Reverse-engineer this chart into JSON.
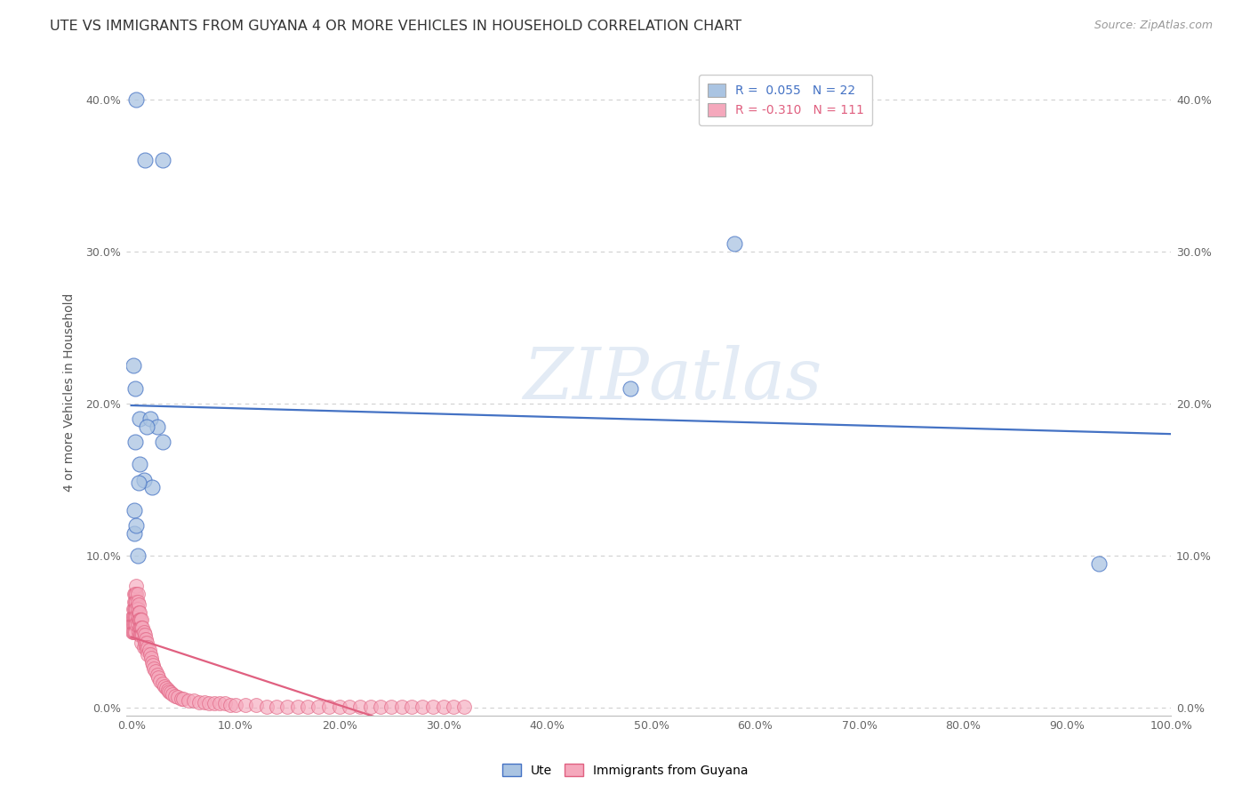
{
  "title": "UTE VS IMMIGRANTS FROM GUYANA 4 OR MORE VEHICLES IN HOUSEHOLD CORRELATION CHART",
  "source": "Source: ZipAtlas.com",
  "ylabel": "4 or more Vehicles in Household",
  "xlabel": "",
  "watermark": "ZIPatlas",
  "xlim": [
    -0.005,
    1.0
  ],
  "ylim": [
    -0.005,
    0.42
  ],
  "xticks": [
    0.0,
    0.1,
    0.2,
    0.3,
    0.4,
    0.5,
    0.6,
    0.7,
    0.8,
    0.9,
    1.0
  ],
  "yticks": [
    0.0,
    0.1,
    0.2,
    0.3,
    0.4
  ],
  "ute_R": 0.055,
  "ute_N": 22,
  "guyana_R": -0.31,
  "guyana_N": 111,
  "ute_color": "#aac4e2",
  "guyana_color": "#f5a8bc",
  "ute_line_color": "#4472c4",
  "guyana_line_color": "#e06080",
  "legend_label_ute": "Ute",
  "legend_label_guyana": "Immigrants from Guyana",
  "ute_points_x": [
    0.005,
    0.013,
    0.03,
    0.002,
    0.004,
    0.008,
    0.018,
    0.025,
    0.004,
    0.008,
    0.012,
    0.02,
    0.03,
    0.003,
    0.003,
    0.006,
    0.48,
    0.58,
    0.93,
    0.007,
    0.005,
    0.015
  ],
  "ute_points_y": [
    0.4,
    0.36,
    0.36,
    0.225,
    0.21,
    0.19,
    0.19,
    0.185,
    0.175,
    0.16,
    0.15,
    0.145,
    0.175,
    0.13,
    0.115,
    0.1,
    0.21,
    0.305,
    0.095,
    0.148,
    0.12,
    0.185
  ],
  "guyana_points_x": [
    0.001,
    0.001,
    0.001,
    0.002,
    0.002,
    0.002,
    0.002,
    0.003,
    0.003,
    0.003,
    0.003,
    0.003,
    0.003,
    0.004,
    0.004,
    0.004,
    0.004,
    0.004,
    0.004,
    0.005,
    0.005,
    0.005,
    0.005,
    0.005,
    0.005,
    0.006,
    0.006,
    0.006,
    0.006,
    0.006,
    0.007,
    0.007,
    0.007,
    0.007,
    0.008,
    0.008,
    0.008,
    0.008,
    0.009,
    0.009,
    0.009,
    0.01,
    0.01,
    0.01,
    0.01,
    0.011,
    0.011,
    0.012,
    0.012,
    0.012,
    0.013,
    0.013,
    0.014,
    0.014,
    0.015,
    0.015,
    0.016,
    0.016,
    0.017,
    0.018,
    0.019,
    0.02,
    0.021,
    0.022,
    0.023,
    0.025,
    0.026,
    0.028,
    0.03,
    0.032,
    0.034,
    0.035,
    0.036,
    0.038,
    0.04,
    0.042,
    0.045,
    0.048,
    0.05,
    0.055,
    0.06,
    0.065,
    0.07,
    0.075,
    0.08,
    0.085,
    0.09,
    0.095,
    0.1,
    0.11,
    0.12,
    0.13,
    0.14,
    0.15,
    0.16,
    0.17,
    0.18,
    0.19,
    0.2,
    0.21,
    0.22,
    0.23,
    0.24,
    0.25,
    0.26,
    0.27,
    0.28,
    0.29,
    0.3,
    0.31,
    0.32
  ],
  "guyana_points_y": [
    0.06,
    0.055,
    0.05,
    0.065,
    0.06,
    0.055,
    0.05,
    0.075,
    0.07,
    0.065,
    0.06,
    0.055,
    0.05,
    0.075,
    0.07,
    0.065,
    0.06,
    0.055,
    0.05,
    0.08,
    0.075,
    0.07,
    0.065,
    0.06,
    0.055,
    0.075,
    0.07,
    0.065,
    0.06,
    0.055,
    0.068,
    0.063,
    0.058,
    0.05,
    0.063,
    0.058,
    0.053,
    0.048,
    0.058,
    0.053,
    0.048,
    0.058,
    0.053,
    0.048,
    0.043,
    0.053,
    0.048,
    0.05,
    0.045,
    0.04,
    0.048,
    0.043,
    0.045,
    0.04,
    0.043,
    0.038,
    0.04,
    0.035,
    0.038,
    0.035,
    0.033,
    0.03,
    0.028,
    0.026,
    0.024,
    0.022,
    0.02,
    0.018,
    0.016,
    0.014,
    0.013,
    0.012,
    0.011,
    0.01,
    0.009,
    0.008,
    0.007,
    0.006,
    0.006,
    0.005,
    0.005,
    0.004,
    0.004,
    0.003,
    0.003,
    0.003,
    0.003,
    0.002,
    0.002,
    0.002,
    0.002,
    0.001,
    0.001,
    0.001,
    0.001,
    0.001,
    0.001,
    0.001,
    0.001,
    0.001,
    0.001,
    0.001,
    0.001,
    0.001,
    0.001,
    0.001,
    0.001,
    0.001,
    0.001,
    0.001,
    0.001
  ],
  "background_color": "#ffffff",
  "grid_color": "#d0d0d0",
  "title_fontsize": 11.5,
  "axis_label_fontsize": 10,
  "tick_fontsize": 9,
  "legend_fontsize": 10,
  "source_fontsize": 9
}
